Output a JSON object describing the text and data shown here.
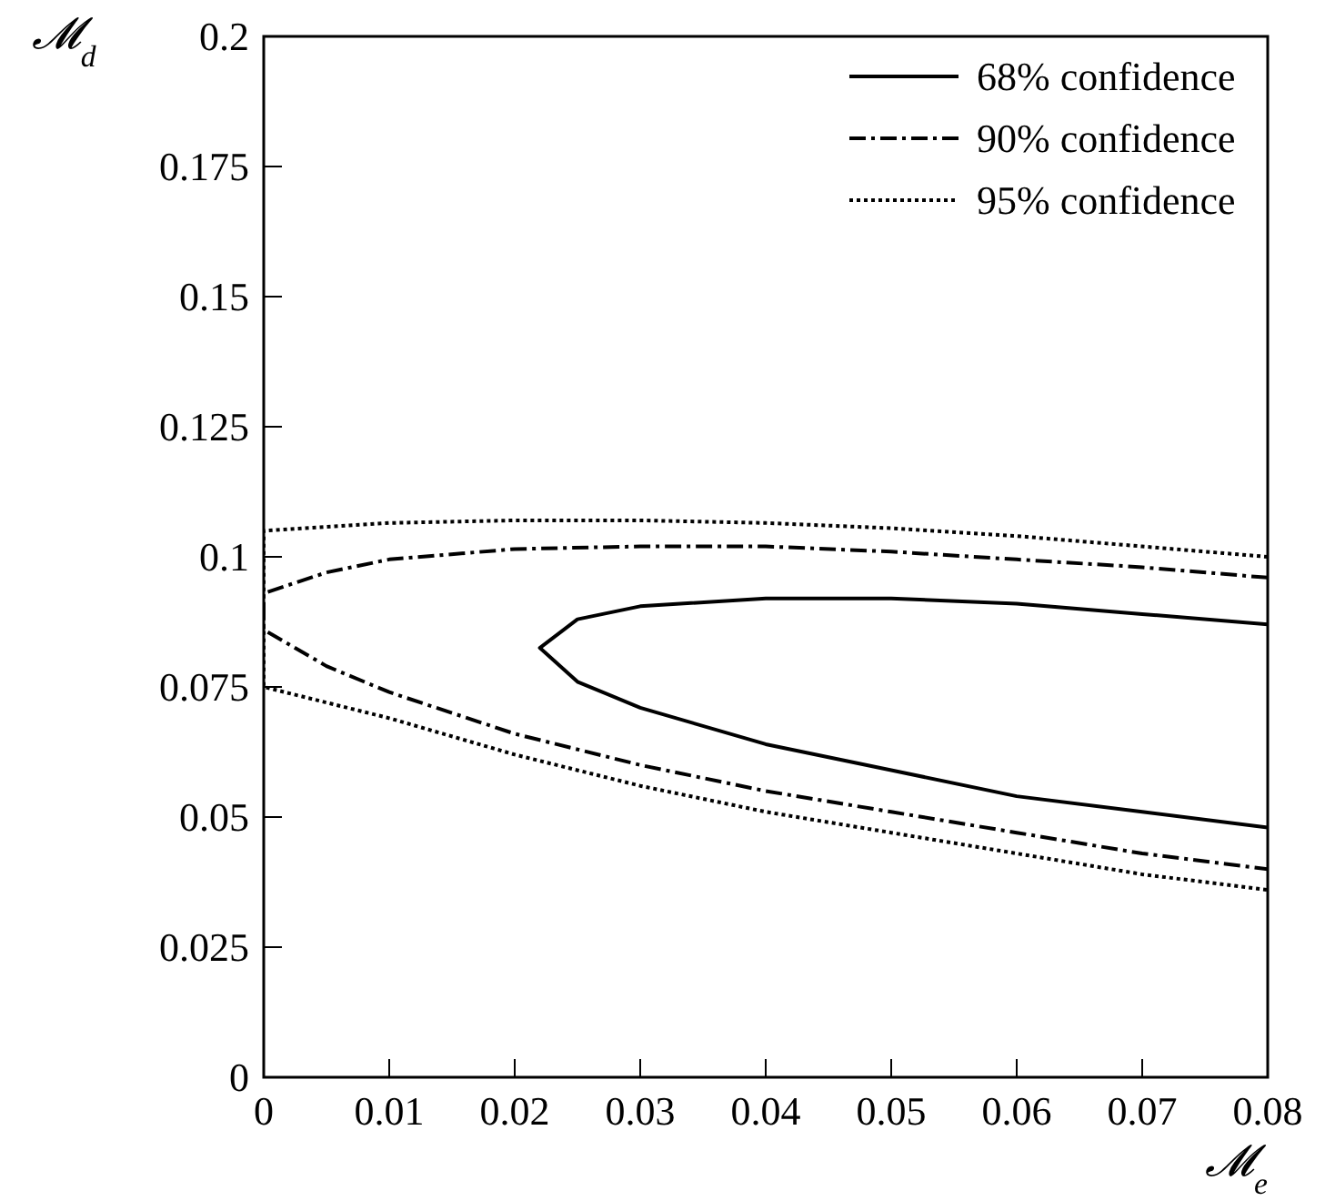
{
  "chart_data": {
    "type": "line",
    "xlabel": "𝓜$_{e}$",
    "ylabel": "𝓜$_{d}$",
    "xlim": [
      0,
      0.08
    ],
    "ylim": [
      0,
      0.2
    ],
    "xticks": [
      0,
      0.01,
      0.02,
      0.03,
      0.04,
      0.05,
      0.06,
      0.07,
      0.08
    ],
    "yticks": [
      0,
      0.025,
      0.05,
      0.075,
      0.1,
      0.125,
      0.15,
      0.175,
      0.2
    ],
    "legend": "top right",
    "grid": false,
    "series": [
      {
        "name": "68% confidence",
        "color": "#000000",
        "line_style": "solid",
        "x": [
          0.08,
          0.07,
          0.06,
          0.05,
          0.04,
          0.03,
          0.025,
          0.022,
          0.025,
          0.03,
          0.04,
          0.05,
          0.06,
          0.07,
          0.08
        ],
        "values": [
          0.087,
          0.089,
          0.091,
          0.092,
          0.092,
          0.0905,
          0.088,
          0.0825,
          0.076,
          0.071,
          0.064,
          0.059,
          0.054,
          0.051,
          0.048
        ]
      },
      {
        "name": "90% confidence",
        "color": "#000000",
        "line_style": "dashed",
        "x": [
          0.08,
          0.07,
          0.06,
          0.05,
          0.04,
          0.03,
          0.02,
          0.01,
          0.005,
          0,
          0,
          0.005,
          0.01,
          0.02,
          0.03,
          0.04,
          0.05,
          0.06,
          0.07,
          0.08
        ],
        "values": [
          0.096,
          0.098,
          0.0995,
          0.101,
          0.102,
          0.102,
          0.1015,
          0.0995,
          0.097,
          0.093,
          0.086,
          0.079,
          0.074,
          0.066,
          0.06,
          0.055,
          0.051,
          0.047,
          0.043,
          0.04
        ]
      },
      {
        "name": "95% confidence",
        "color": "#000000",
        "line_style": "dotted",
        "x": [
          0.08,
          0.07,
          0.06,
          0.05,
          0.04,
          0.03,
          0.02,
          0.01,
          0,
          0,
          0.01,
          0.02,
          0.03,
          0.04,
          0.05,
          0.06,
          0.07,
          0.08
        ],
        "values": [
          0.1,
          0.102,
          0.104,
          0.1055,
          0.1065,
          0.107,
          0.107,
          0.1065,
          0.105,
          0.075,
          0.069,
          0.062,
          0.056,
          0.051,
          0.047,
          0.043,
          0.039,
          0.036
        ]
      }
    ]
  }
}
